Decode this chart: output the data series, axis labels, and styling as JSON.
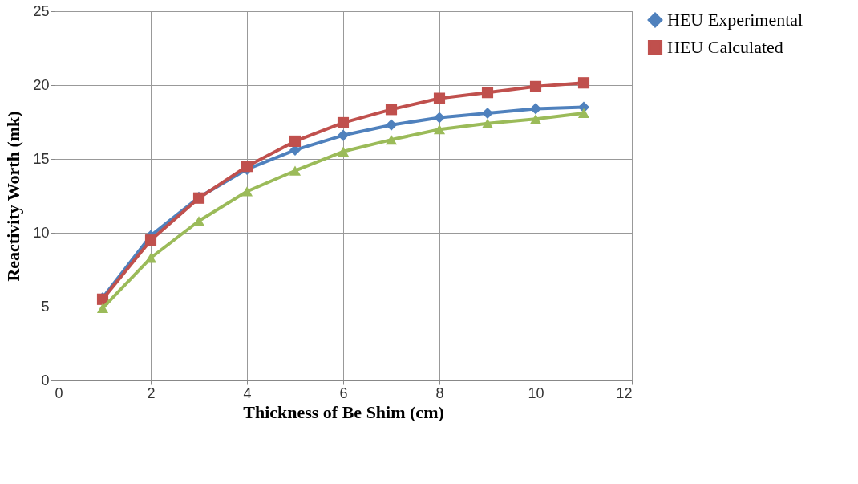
{
  "chart_data": {
    "type": "line",
    "xlabel": "Thickness of Be Shim (cm)",
    "ylabel": "Reactivity Worth (mk)",
    "x": [
      1,
      2,
      3,
      4,
      5,
      6,
      7,
      8,
      9,
      10,
      11
    ],
    "xlim": [
      0,
      12
    ],
    "xticks": [
      0,
      2,
      4,
      6,
      8,
      10,
      12
    ],
    "ylim": [
      0,
      25
    ],
    "yticks": [
      0,
      5,
      10,
      15,
      20,
      25
    ],
    "grid": true,
    "legend": "right",
    "line_style": "solid",
    "series": [
      {
        "name": "HEU Experimental",
        "color": "#4f81bd",
        "marker": "diamond",
        "values": [
          5.6,
          9.8,
          12.4,
          14.3,
          15.6,
          16.6,
          17.3,
          17.8,
          18.1,
          18.4,
          18.5
        ]
      },
      {
        "name": "HEU Calculated",
        "color": "#c0504d",
        "marker": "square",
        "values": [
          5.5,
          9.5,
          12.35,
          14.5,
          16.2,
          17.45,
          18.35,
          19.1,
          19.5,
          19.9,
          20.15
        ]
      },
      {
        "color": "#9bbb59",
        "marker": "triangle",
        "values": [
          4.9,
          8.3,
          10.8,
          12.8,
          14.2,
          15.5,
          16.3,
          17.0,
          17.4,
          17.7,
          18.1
        ]
      }
    ]
  }
}
